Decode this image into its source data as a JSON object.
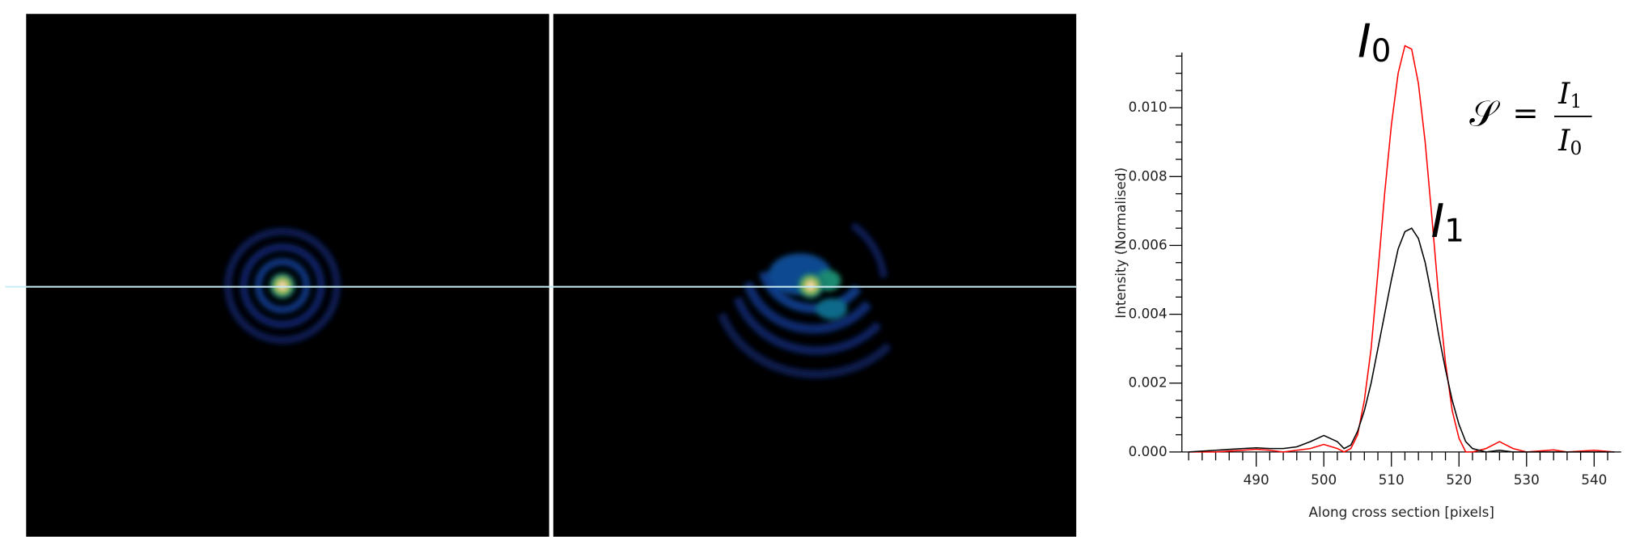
{
  "chart_data": {
    "type": "line",
    "x_label": "Along cross section [pixels]",
    "y_label": "Intensity (Normalised)",
    "x": [
      480,
      484,
      488,
      490,
      492,
      494,
      496,
      498,
      500,
      502,
      503,
      504,
      505,
      506,
      507,
      508,
      509,
      510,
      511,
      512,
      513,
      514,
      515,
      516,
      517,
      518,
      519,
      520,
      521,
      522,
      524,
      526,
      528,
      530,
      534,
      536,
      540,
      543
    ],
    "series": [
      {
        "name": "I0",
        "color": "#ff0000",
        "values": [
          0,
          0,
          5e-05,
          8e-05,
          5e-05,
          0,
          5e-05,
          0.0001,
          0.00022,
          0.0001,
          0,
          0.0001,
          0.0005,
          0.0015,
          0.003,
          0.0052,
          0.0075,
          0.0095,
          0.011,
          0.0118,
          0.0117,
          0.0107,
          0.009,
          0.0068,
          0.0045,
          0.0026,
          0.0012,
          0.0004,
          0,
          0,
          0.0001,
          0.0003,
          0.0001,
          0,
          6e-05,
          0,
          5e-05,
          0
        ]
      },
      {
        "name": "I1",
        "color": "#000000",
        "values": [
          0,
          5e-05,
          0.0001,
          0.00012,
          0.0001,
          0.0001,
          0.00015,
          0.0003,
          0.00048,
          0.0003,
          0.0001,
          0.0002,
          0.0006,
          0.0012,
          0.002,
          0.003,
          0.004,
          0.005,
          0.0059,
          0.0064,
          0.0065,
          0.0062,
          0.0055,
          0.0045,
          0.0034,
          0.0024,
          0.0015,
          0.0008,
          0.0003,
          0.0001,
          0,
          5e-05,
          0,
          0,
          0,
          0,
          0,
          0
        ]
      }
    ],
    "xlim": [
      479,
      544
    ],
    "ylim": [
      0,
      0.0116
    ],
    "xticks": [
      490,
      500,
      510,
      520,
      530,
      540
    ],
    "xminorticks": [
      480,
      482,
      484,
      486,
      488,
      492,
      494,
      496,
      498,
      502,
      504,
      506,
      508,
      512,
      514,
      516,
      518,
      522,
      524,
      526,
      528,
      532,
      534,
      536,
      538,
      542
    ],
    "yticks": [
      {
        "value": 0,
        "label": "0.000"
      },
      0.002,
      0.004,
      0.006,
      0.008,
      {
        "value": 0.01,
        "label": "0.010"
      }
    ],
    "yminorticks": [
      0.0005,
      0.001,
      0.0015,
      0.0025,
      0.003,
      0.0035,
      0.0045,
      0.005,
      0.0055,
      0.0065,
      0.007,
      0.0075,
      0.0085,
      0.009,
      0.0095,
      0.0105,
      0.011,
      0.0115
    ],
    "annotations": [
      {
        "text": "I",
        "sub": "0"
      },
      {
        "text": "I",
        "sub": "1"
      }
    ],
    "formula": {
      "lhs": "𝒮",
      "eq": "=",
      "num": "I",
      "num_sub": "1",
      "den": "I",
      "den_sub": "0"
    }
  }
}
